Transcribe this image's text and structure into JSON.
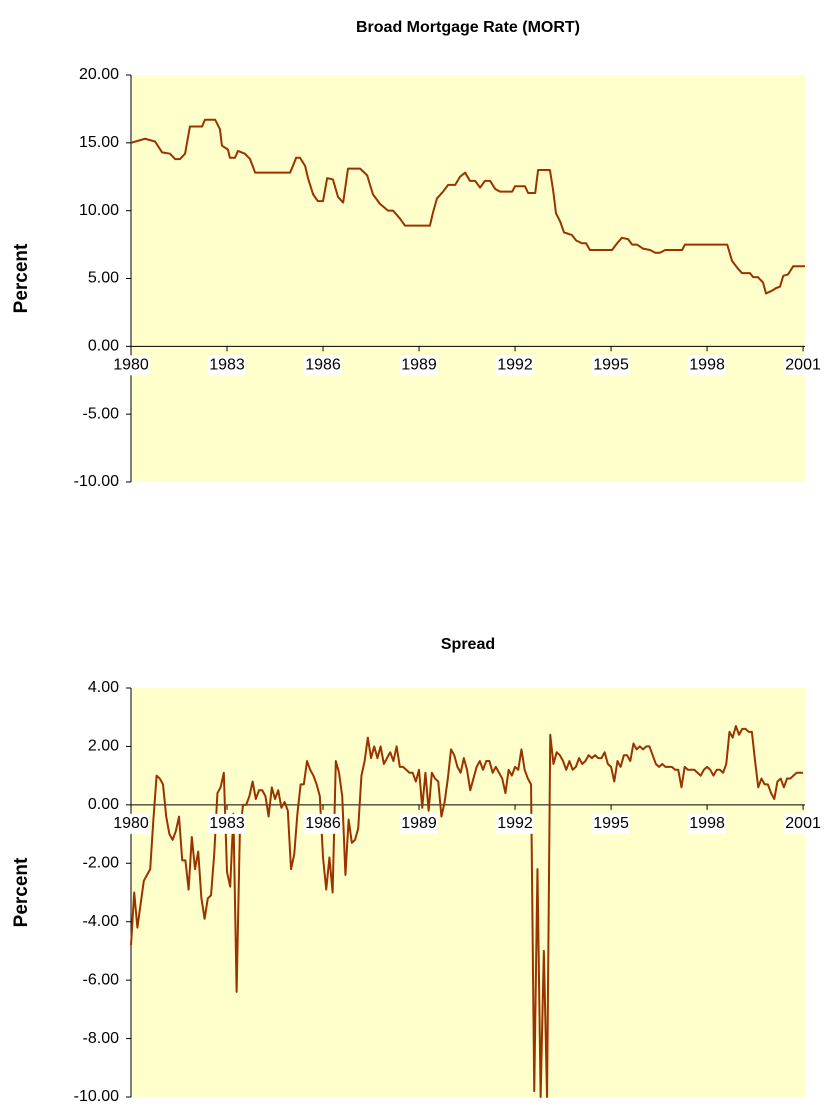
{
  "chart_data": [
    {
      "type": "line",
      "title": "Broad Mortgage Rate (MORT)",
      "y_label": "Percent",
      "color": "#993300",
      "background": "#ffffcc",
      "xlim": [
        1980,
        2001.06
      ],
      "xticks": [
        1980,
        1983,
        1986,
        1989,
        1992,
        1995,
        1998,
        2001
      ],
      "ylim": [
        -10,
        20
      ],
      "yticks": [
        {
          "value": -10,
          "label": "-10.00"
        },
        {
          "value": -5,
          "label": "-5.00"
        },
        {
          "value": 0,
          "label": "0.00"
        },
        {
          "value": 5,
          "label": "5.00"
        },
        {
          "value": 10,
          "label": "10.00"
        },
        {
          "value": 15,
          "label": "15.00"
        },
        {
          "value": 20,
          "label": "20.00"
        }
      ],
      "x": [
        1980,
        1980.44,
        1980.75,
        1980.97,
        1981.22,
        1981.38,
        1981.53,
        1981.69,
        1981.84,
        1982.22,
        1982.31,
        1982.63,
        1982.78,
        1982.84,
        1983.03,
        1983.09,
        1983.25,
        1983.34,
        1983.56,
        1983.72,
        1983.88,
        1984.97,
        1985.06,
        1985.16,
        1985.28,
        1985.44,
        1985.53,
        1985.69,
        1985.84,
        1986.0,
        1986.13,
        1986.31,
        1986.47,
        1986.63,
        1986.78,
        1987.16,
        1987.38,
        1987.56,
        1987.78,
        1988.03,
        1988.19,
        1988.41,
        1988.56,
        1989.34,
        1989.44,
        1989.56,
        1989.75,
        1989.91,
        1990.13,
        1990.28,
        1990.44,
        1990.59,
        1990.75,
        1990.91,
        1991.06,
        1991.22,
        1991.38,
        1991.53,
        1991.91,
        1992.0,
        1992.31,
        1992.41,
        1992.63,
        1992.72,
        1993.09,
        1993.19,
        1993.28,
        1993.41,
        1993.53,
        1993.78,
        1993.91,
        1994.09,
        1994.22,
        1994.34,
        1995.03,
        1995.19,
        1995.34,
        1995.53,
        1995.66,
        1995.81,
        1996.0,
        1996.22,
        1996.38,
        1996.53,
        1996.69,
        1997.22,
        1997.31,
        1998.63,
        1998.78,
        1998.94,
        1999.09,
        1999.34,
        1999.44,
        1999.59,
        1999.75,
        1999.84,
        2000.03,
        2000.16,
        2000.28,
        2000.38,
        2000.53,
        2000.69,
        2001.06
      ],
      "values": [
        15.0,
        15.3,
        15.1,
        14.3,
        14.2,
        13.8,
        13.8,
        14.2,
        16.2,
        16.2,
        16.7,
        16.7,
        16.0,
        14.8,
        14.5,
        13.9,
        13.9,
        14.4,
        14.2,
        13.8,
        12.8,
        12.8,
        13.3,
        13.9,
        13.9,
        13.3,
        12.4,
        11.2,
        10.7,
        10.7,
        12.4,
        12.3,
        11.0,
        10.6,
        13.1,
        13.1,
        12.6,
        11.2,
        10.5,
        10.0,
        10.0,
        9.4,
        8.9,
        8.9,
        9.9,
        10.9,
        11.4,
        11.9,
        11.9,
        12.5,
        12.8,
        12.2,
        12.2,
        11.7,
        12.2,
        12.2,
        11.6,
        11.4,
        11.4,
        11.8,
        11.8,
        11.3,
        11.3,
        13.0,
        13.0,
        11.5,
        9.8,
        9.2,
        8.4,
        8.2,
        7.8,
        7.6,
        7.6,
        7.1,
        7.1,
        7.6,
        8.0,
        7.9,
        7.5,
        7.5,
        7.2,
        7.1,
        6.9,
        6.9,
        7.1,
        7.1,
        7.5,
        7.5,
        6.3,
        5.8,
        5.4,
        5.4,
        5.1,
        5.1,
        4.7,
        3.9,
        4.1,
        4.3,
        4.4,
        5.2,
        5.3,
        5.9,
        5.9
      ]
    },
    {
      "type": "line",
      "title": "Spread",
      "y_label": "Percent",
      "color": "#993300",
      "background": "#ffffcc",
      "xlim": [
        1980,
        2001.06
      ],
      "xticks": [
        1980,
        1983,
        1986,
        1989,
        1992,
        1995,
        1998,
        2001
      ],
      "ylim": [
        -10,
        4
      ],
      "yticks": [
        {
          "value": -10,
          "label": "-10.00"
        },
        {
          "value": -8,
          "label": "-8.00"
        },
        {
          "value": -6,
          "label": "-6.00"
        },
        {
          "value": -4,
          "label": "-4.00"
        },
        {
          "value": -2,
          "label": "-2.00"
        },
        {
          "value": 0,
          "label": "0.00"
        },
        {
          "value": 2,
          "label": "2.00"
        },
        {
          "value": 4,
          "label": "4.00"
        }
      ],
      "x": [
        1980.0,
        1980.1,
        1980.2,
        1980.3,
        1980.4,
        1980.5,
        1980.6,
        1980.7,
        1980.8,
        1980.9,
        1981.0,
        1981.1,
        1981.2,
        1981.3,
        1981.4,
        1981.5,
        1981.6,
        1981.7,
        1981.8,
        1981.9,
        1982.0,
        1982.1,
        1982.2,
        1982.3,
        1982.4,
        1982.5,
        1982.6,
        1982.7,
        1982.8,
        1982.9,
        1983.0,
        1983.1,
        1983.2,
        1983.3,
        1983.4,
        1983.5,
        1983.6,
        1983.7,
        1983.8,
        1983.9,
        1984.0,
        1984.1,
        1984.2,
        1984.3,
        1984.4,
        1984.5,
        1984.6,
        1984.7,
        1984.8,
        1984.9,
        1985.0,
        1985.1,
        1985.2,
        1985.3,
        1985.4,
        1985.5,
        1985.6,
        1985.7,
        1985.8,
        1985.9,
        1986.0,
        1986.1,
        1986.2,
        1986.3,
        1986.4,
        1986.5,
        1986.6,
        1986.7,
        1986.8,
        1986.9,
        1987.0,
        1987.1,
        1987.2,
        1987.3,
        1987.4,
        1987.5,
        1987.6,
        1987.7,
        1987.8,
        1987.9,
        1988.0,
        1988.1,
        1988.2,
        1988.3,
        1988.4,
        1988.5,
        1988.6,
        1988.7,
        1988.8,
        1988.9,
        1989.0,
        1989.1,
        1989.2,
        1989.3,
        1989.4,
        1989.5,
        1989.6,
        1989.7,
        1989.8,
        1989.9,
        1990.0,
        1990.1,
        1990.2,
        1990.3,
        1990.4,
        1990.5,
        1990.6,
        1990.7,
        1990.8,
        1990.9,
        1991.0,
        1991.1,
        1991.2,
        1991.3,
        1991.4,
        1991.5,
        1991.6,
        1991.7,
        1991.8,
        1991.9,
        1992.0,
        1992.1,
        1992.2,
        1992.3,
        1992.4,
        1992.5,
        1992.6,
        1992.7,
        1992.8,
        1992.9,
        1993.0,
        1993.1,
        1993.2,
        1993.3,
        1993.4,
        1993.5,
        1993.6,
        1993.7,
        1993.8,
        1993.9,
        1994.0,
        1994.1,
        1994.2,
        1994.3,
        1994.4,
        1994.5,
        1994.6,
        1994.7,
        1994.8,
        1994.9,
        1995.0,
        1995.1,
        1995.2,
        1995.3,
        1995.4,
        1995.5,
        1995.6,
        1995.7,
        1995.8,
        1995.9,
        1996.0,
        1996.1,
        1996.2,
        1996.3,
        1996.4,
        1996.5,
        1996.6,
        1996.7,
        1996.8,
        1996.9,
        1997.0,
        1997.1,
        1997.2,
        1997.3,
        1997.4,
        1997.5,
        1997.6,
        1997.7,
        1997.8,
        1997.9,
        1998.0,
        1998.1,
        1998.2,
        1998.3,
        1998.4,
        1998.5,
        1998.6,
        1998.7,
        1998.8,
        1998.9,
        1999.0,
        1999.1,
        1999.2,
        1999.3,
        1999.4,
        1999.5,
        1999.6,
        1999.7,
        1999.8,
        1999.9,
        2000.0,
        2000.1,
        2000.2,
        2000.3,
        2000.4,
        2000.5,
        2000.6,
        2000.7,
        2000.8,
        2000.9,
        2001.0
      ],
      "values": [
        -4.8,
        -3.0,
        -4.2,
        -3.4,
        -2.6,
        -2.4,
        -2.2,
        -0.5,
        1.0,
        0.9,
        0.7,
        -0.4,
        -1.0,
        -1.2,
        -0.9,
        -0.4,
        -1.9,
        -1.9,
        -2.9,
        -1.1,
        -2.2,
        -1.6,
        -3.2,
        -3.9,
        -3.2,
        -3.1,
        -1.7,
        0.4,
        0.6,
        1.1,
        -2.3,
        -2.8,
        -0.3,
        -6.4,
        -1.0,
        0.0,
        0.0,
        0.3,
        0.8,
        0.2,
        0.5,
        0.5,
        0.3,
        -0.4,
        0.6,
        0.2,
        0.5,
        -0.1,
        0.1,
        -0.2,
        -2.2,
        -1.7,
        -0.3,
        0.7,
        0.7,
        1.5,
        1.2,
        1.0,
        0.7,
        0.3,
        -1.8,
        -2.9,
        -1.8,
        -3.0,
        1.5,
        1.1,
        0.3,
        -2.4,
        -0.5,
        -1.3,
        -1.2,
        -0.8,
        1.0,
        1.5,
        2.3,
        1.6,
        2.0,
        1.6,
        2.0,
        1.4,
        1.6,
        1.8,
        1.5,
        2.0,
        1.3,
        1.3,
        1.2,
        1.1,
        1.1,
        0.8,
        1.2,
        -0.1,
        1.1,
        -0.2,
        1.1,
        0.9,
        0.8,
        -0.4,
        0.1,
        0.9,
        1.9,
        1.7,
        1.3,
        1.1,
        1.6,
        1.2,
        0.5,
        0.9,
        1.3,
        1.5,
        1.2,
        1.5,
        1.5,
        1.1,
        1.3,
        1.1,
        0.9,
        0.4,
        1.2,
        1.0,
        1.3,
        1.2,
        1.9,
        1.2,
        0.9,
        0.7,
        -9.8,
        -2.2,
        -10.0,
        -5.0,
        -10.0,
        2.4,
        1.4,
        1.8,
        1.7,
        1.5,
        1.2,
        1.5,
        1.2,
        1.3,
        1.6,
        1.4,
        1.5,
        1.7,
        1.6,
        1.7,
        1.6,
        1.6,
        1.8,
        1.4,
        1.3,
        0.8,
        1.5,
        1.3,
        1.7,
        1.7,
        1.5,
        2.1,
        1.9,
        2.0,
        1.9,
        2.0,
        2.0,
        1.7,
        1.4,
        1.3,
        1.4,
        1.3,
        1.3,
        1.3,
        1.2,
        1.2,
        0.6,
        1.3,
        1.2,
        1.2,
        1.2,
        1.1,
        1.0,
        1.2,
        1.3,
        1.2,
        1.0,
        1.2,
        1.2,
        1.1,
        1.4,
        2.5,
        2.3,
        2.7,
        2.4,
        2.6,
        2.6,
        2.5,
        2.5,
        1.5,
        0.6,
        0.9,
        0.7,
        0.7,
        0.4,
        0.2,
        0.8,
        0.9,
        0.6,
        0.9,
        0.9,
        1.0,
        1.1,
        1.1,
        1.1
      ]
    }
  ]
}
